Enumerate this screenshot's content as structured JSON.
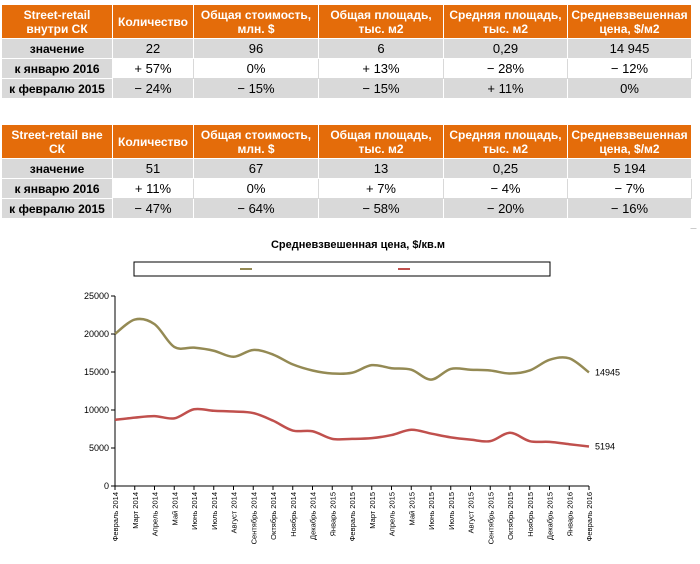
{
  "tables": [
    {
      "header": [
        "Street-retail внутри СК",
        "Количество",
        "Общая стоимость, млн. $",
        "Общая площадь, тыс. м2",
        "Средняя площадь, тыс. м2",
        "Средневзвешенная цена, $/м2"
      ],
      "rows": [
        [
          "значение",
          "22",
          "96",
          "6",
          "0,29",
          "14 945"
        ],
        [
          "к январю 2016",
          "+ 57%",
          "0%",
          "+ 13%",
          "− 28%",
          "− 12%"
        ],
        [
          "к февралю 2015",
          "− 24%",
          "− 15%",
          "− 15%",
          "+ 11%",
          "0%"
        ]
      ]
    },
    {
      "header": [
        "Street-retail вне СК",
        "Количество",
        "Общая стоимость, млн. $",
        "Общая площадь, тыс. м2",
        "Средняя площадь, тыс. м2",
        "Средневзвешенная цена, $/м2"
      ],
      "rows": [
        [
          "значение",
          "51",
          "67",
          "13",
          "0,25",
          "5 194"
        ],
        [
          "к январю 2016",
          "+ 11%",
          "0%",
          "+ 7%",
          "− 4%",
          "− 7%"
        ],
        [
          "к февралю 2015",
          "− 47%",
          "− 64%",
          "− 58%",
          "− 20%",
          "− 16%"
        ]
      ]
    }
  ],
  "chart_data": {
    "type": "line",
    "title": "Средневзвешенная цена, $/кв.м",
    "x": [
      "Февраль 2014",
      "Март 2014",
      "Апрель 2014",
      "Май 2014",
      "Июнь 2014",
      "Июль 2014",
      "Август 2014",
      "Сентябрь 2014",
      "Октябрь 2014",
      "Ноябрь 2014",
      "Декабрь 2014",
      "Январь 2015",
      "Февраль 2015",
      "Март 2015",
      "Апрель 2015",
      "Май 2015",
      "Июнь 2015",
      "Июль 2015",
      "Август 2015",
      "Сентябрь 2015",
      "Октябрь 2015",
      "Ноябрь 2015",
      "Декабрь 2015",
      "Январь 2016",
      "Февраль 2016"
    ],
    "series": [
      {
        "name": "",
        "color": "#948a54",
        "values": [
          20000,
          21900,
          21300,
          18300,
          18200,
          17800,
          17000,
          17900,
          17300,
          16000,
          15200,
          14800,
          14900,
          15900,
          15500,
          15300,
          14000,
          15400,
          15300,
          15200,
          14800,
          15200,
          16600,
          16800,
          14945
        ],
        "end_label": "14945"
      },
      {
        "name": "",
        "color": "#c0504d",
        "values": [
          8700,
          9000,
          9200,
          8900,
          10100,
          9900,
          9800,
          9600,
          8600,
          7300,
          7200,
          6200,
          6200,
          6300,
          6700,
          7400,
          6900,
          6400,
          6100,
          5900,
          7000,
          5900,
          5800,
          5500,
          5194
        ],
        "end_label": "5194"
      }
    ],
    "yticks": [
      "0",
      "5000",
      "10000",
      "15000",
      "20000",
      "25000"
    ],
    "ylim": [
      0,
      25000
    ],
    "legend_placement": "top",
    "grid": false
  }
}
